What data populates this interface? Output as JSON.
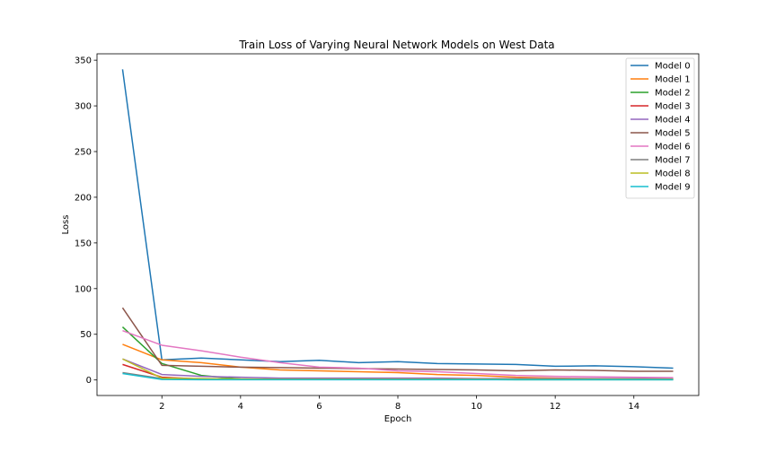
{
  "chart_data": {
    "type": "line",
    "title": "Train Loss of Varying Neural Network Models on West Data",
    "xlabel": "Epoch",
    "ylabel": "Loss",
    "xlim": [
      0.35,
      15.65
    ],
    "ylim": [
      -17,
      357
    ],
    "xticks": [
      2,
      4,
      6,
      8,
      10,
      12,
      14
    ],
    "yticks": [
      0,
      50,
      100,
      150,
      200,
      250,
      300,
      350
    ],
    "grid": false,
    "legend": "top-right",
    "x": [
      1,
      2,
      3,
      4,
      5,
      6,
      7,
      8,
      9,
      10,
      11,
      12,
      13,
      14,
      15
    ],
    "series": [
      {
        "name": "Model 0",
        "color": "#1f77b4",
        "values": [
          340,
          22,
          24,
          22,
          20,
          21.5,
          19,
          20,
          18,
          17.5,
          17,
          15,
          15.5,
          14.5,
          13
        ]
      },
      {
        "name": "Model 1",
        "color": "#ff7f0e",
        "values": [
          39,
          22,
          19,
          14,
          11,
          10,
          9,
          8,
          6,
          5,
          3,
          2,
          1.5,
          1.5,
          1.5
        ]
      },
      {
        "name": "Model 2",
        "color": "#2ca02c",
        "values": [
          58,
          18,
          5,
          1,
          0.5,
          0.5,
          0.5,
          0.5,
          0.5,
          0.5,
          0.3,
          0.3,
          0.3,
          0.3,
          0.3
        ]
      },
      {
        "name": "Model 3",
        "color": "#d62728",
        "values": [
          17,
          3,
          1,
          0.5,
          0.5,
          0.5,
          0.5,
          0.5,
          0.5,
          0.5,
          0.5,
          0.5,
          0.5,
          0.5,
          0.5
        ]
      },
      {
        "name": "Model 4",
        "color": "#9467bd",
        "values": [
          23,
          6,
          4,
          3,
          2,
          2,
          2,
          2,
          2,
          1.5,
          1.5,
          1.5,
          1.5,
          1.5,
          1.5
        ]
      },
      {
        "name": "Model 5",
        "color": "#8c564b",
        "values": [
          79,
          16,
          15,
          14,
          13.5,
          13,
          12.5,
          12,
          11.5,
          11,
          10,
          11,
          10.5,
          9.5,
          9.5
        ]
      },
      {
        "name": "Model 6",
        "color": "#e377c2",
        "values": [
          54,
          38,
          32,
          25,
          19,
          14,
          13,
          10,
          9,
          7,
          5,
          4,
          3.5,
          3,
          2.5
        ]
      },
      {
        "name": "Model 7",
        "color": "#7f7f7f",
        "values": [
          8,
          1.5,
          1,
          1,
          0.8,
          0.8,
          0.8,
          0.8,
          0.8,
          0.8,
          0.8,
          0.8,
          0.8,
          0.8,
          0.8
        ]
      },
      {
        "name": "Model 8",
        "color": "#bcbd22",
        "values": [
          23,
          2,
          1.5,
          1,
          0.8,
          0.8,
          0.8,
          0.8,
          0.8,
          0.8,
          0.8,
          0.8,
          0.8,
          0.8,
          0.8
        ]
      },
      {
        "name": "Model 9",
        "color": "#17becf",
        "values": [
          7,
          0.5,
          0.3,
          0.3,
          0.3,
          0.3,
          0.3,
          0.3,
          0.3,
          0.3,
          0.3,
          0.3,
          0.3,
          0.3,
          0.3
        ]
      }
    ]
  }
}
